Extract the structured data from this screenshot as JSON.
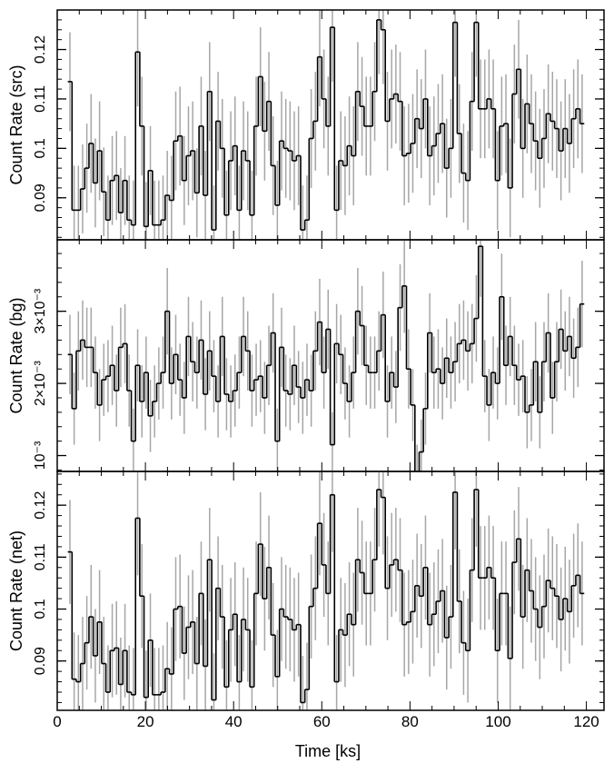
{
  "figure": {
    "xlabel": "Time [ks]",
    "x_tick_labels": [
      "0",
      "20",
      "40",
      "60",
      "80",
      "100",
      "120"
    ]
  },
  "colors": {
    "step_line": "#000000",
    "error_bar": "#a6a6a6",
    "axis": "#000000",
    "background": "#ffffff"
  },
  "chart_data": [
    {
      "type": "line",
      "style": "step-with-error-bars",
      "ylabel": "Count Rate (src)",
      "xlim": [
        0,
        124
      ],
      "ylim": [
        0.0815,
        0.128
      ],
      "y_ticks": [
        0.09,
        0.1,
        0.11,
        0.12
      ],
      "y_tick_labels": [
        "0.09",
        "0.1",
        "0.11",
        "0.12"
      ],
      "bin_width_ks": 0.96,
      "x_start_ks": 2.4,
      "grid": false,
      "values": [
        0.1135,
        0.0875,
        0.0875,
        0.0918,
        0.096,
        0.101,
        0.093,
        0.0995,
        0.0912,
        0.0855,
        0.0935,
        0.0945,
        0.087,
        0.0935,
        0.0855,
        0.0845,
        0.1195,
        0.1045,
        0.0842,
        0.0955,
        0.0845,
        0.0845,
        0.0855,
        0.0905,
        0.0895,
        0.1015,
        0.1025,
        0.0935,
        0.0985,
        0.0995,
        0.091,
        0.1045,
        0.0905,
        0.1115,
        0.0835,
        0.1055,
        0.1,
        0.0865,
        0.0975,
        0.1005,
        0.0875,
        0.0995,
        0.0975,
        0.0865,
        0.1045,
        0.1145,
        0.1035,
        0.1095,
        0.0965,
        0.0885,
        0.1015,
        0.1,
        0.0995,
        0.0975,
        0.0985,
        0.0835,
        0.0855,
        0.102,
        0.1055,
        0.1185,
        0.11,
        0.1045,
        0.1245,
        0.0875,
        0.0975,
        0.0965,
        0.1005,
        0.0985,
        0.1115,
        0.1085,
        0.1045,
        0.1045,
        0.1115,
        0.126,
        0.124,
        0.1055,
        0.11,
        0.111,
        0.1095,
        0.0985,
        0.099,
        0.101,
        0.106,
        0.104,
        0.11,
        0.0985,
        0.1005,
        0.103,
        0.105,
        0.096,
        0.1,
        0.1255,
        0.103,
        0.095,
        0.0935,
        0.1095,
        0.1255,
        0.108,
        0.108,
        0.11,
        0.108,
        0.0935,
        0.1045,
        0.105,
        0.092,
        0.111,
        0.116,
        0.1,
        0.109,
        0.105,
        0.1015,
        0.098,
        0.102,
        0.107,
        0.1055,
        0.104,
        0.0995,
        0.104,
        0.101,
        0.106,
        0.108,
        0.105
      ],
      "errors": [
        0.01,
        0.009,
        0.009,
        0.009,
        0.009,
        0.01,
        0.009,
        0.01,
        0.009,
        0.009,
        0.009,
        0.009,
        0.009,
        0.009,
        0.009,
        0.009,
        0.011,
        0.01,
        0.009,
        0.009,
        0.009,
        0.009,
        0.009,
        0.009,
        0.009,
        0.01,
        0.01,
        0.009,
        0.01,
        0.01,
        0.009,
        0.01,
        0.009,
        0.01,
        0.009,
        0.01,
        0.01,
        0.009,
        0.01,
        0.01,
        0.009,
        0.01,
        0.01,
        0.009,
        0.01,
        0.01,
        0.01,
        0.01,
        0.01,
        0.009,
        0.01,
        0.01,
        0.01,
        0.01,
        0.01,
        0.009,
        0.009,
        0.01,
        0.01,
        0.01,
        0.01,
        0.01,
        0.011,
        0.009,
        0.01,
        0.01,
        0.01,
        0.01,
        0.01,
        0.01,
        0.01,
        0.01,
        0.01,
        0.011,
        0.011,
        0.01,
        0.01,
        0.01,
        0.01,
        0.01,
        0.01,
        0.01,
        0.01,
        0.01,
        0.01,
        0.01,
        0.01,
        0.01,
        0.01,
        0.01,
        0.01,
        0.011,
        0.01,
        0.01,
        0.01,
        0.01,
        0.011,
        0.01,
        0.01,
        0.01,
        0.01,
        0.01,
        0.01,
        0.01,
        0.01,
        0.01,
        0.01,
        0.01,
        0.01,
        0.01,
        0.01,
        0.01,
        0.01,
        0.01,
        0.01,
        0.01,
        0.01,
        0.01,
        0.01,
        0.01,
        0.01,
        0.01
      ]
    },
    {
      "type": "line",
      "style": "step-with-error-bars",
      "ylabel": "Count Rate (bg)",
      "xlim": [
        0,
        124
      ],
      "ylim": [
        0.00078,
        0.00399
      ],
      "y_ticks": [
        0.001,
        0.002,
        0.003
      ],
      "y_tick_labels": [
        "10⁻³",
        "2×10⁻³",
        "3×10⁻³"
      ],
      "bin_width_ks": 0.96,
      "x_start_ks": 2.4,
      "grid": false,
      "values": [
        0.0024,
        0.00165,
        0.00245,
        0.0026,
        0.0025,
        0.0025,
        0.00215,
        0.0017,
        0.00205,
        0.0021,
        0.00225,
        0.0019,
        0.0025,
        0.00255,
        0.0019,
        0.0012,
        0.00225,
        0.00175,
        0.00215,
        0.00155,
        0.00175,
        0.002,
        0.00215,
        0.003,
        0.002,
        0.0024,
        0.00205,
        0.0018,
        0.00265,
        0.0023,
        0.00215,
        0.0026,
        0.00185,
        0.00245,
        0.0021,
        0.00175,
        0.00265,
        0.00185,
        0.00175,
        0.0019,
        0.00215,
        0.00265,
        0.00245,
        0.0019,
        0.00205,
        0.0021,
        0.0018,
        0.00225,
        0.0027,
        0.0012,
        0.0025,
        0.0019,
        0.00185,
        0.00225,
        0.00195,
        0.0018,
        0.00205,
        0.0019,
        0.00245,
        0.00285,
        0.00215,
        0.00275,
        0.00115,
        0.00255,
        0.0024,
        0.002,
        0.00175,
        0.00215,
        0.003,
        0.0028,
        0.00225,
        0.00215,
        0.00215,
        0.00245,
        0.00295,
        0.00175,
        0.00215,
        0.00195,
        0.00305,
        0.00335,
        0.0022,
        0.0017,
        0.00075,
        0.00105,
        0.00165,
        0.0027,
        0.00215,
        0.0022,
        0.002,
        0.00235,
        0.00215,
        0.0023,
        0.00255,
        0.0026,
        0.00245,
        0.00255,
        0.0029,
        0.0039,
        0.0021,
        0.0017,
        0.00215,
        0.002,
        0.0032,
        0.00225,
        0.00265,
        0.00225,
        0.00205,
        0.0021,
        0.0016,
        0.0017,
        0.0023,
        0.0016,
        0.0023,
        0.0027,
        0.0018,
        0.0023,
        0.00275,
        0.00245,
        0.00265,
        0.00235,
        0.0025,
        0.0031
      ],
      "errors": [
        0.00055,
        0.0005,
        0.00055,
        0.00055,
        0.00055,
        0.00055,
        0.0005,
        0.0005,
        0.0005,
        0.0005,
        0.00055,
        0.0005,
        0.00055,
        0.00055,
        0.0005,
        0.00045,
        0.0005,
        0.0005,
        0.0005,
        0.0005,
        0.0005,
        0.0005,
        0.0005,
        0.0006,
        0.0005,
        0.00055,
        0.0005,
        0.0005,
        0.00055,
        0.00055,
        0.0005,
        0.00055,
        0.0005,
        0.00055,
        0.0005,
        0.0005,
        0.00055,
        0.0005,
        0.0005,
        0.0005,
        0.0005,
        0.00055,
        0.00055,
        0.0005,
        0.0005,
        0.0005,
        0.0005,
        0.00055,
        0.00055,
        0.00045,
        0.00055,
        0.0005,
        0.0005,
        0.00055,
        0.0005,
        0.0005,
        0.0005,
        0.0005,
        0.00055,
        0.0006,
        0.0005,
        0.00055,
        0.00045,
        0.00055,
        0.00055,
        0.0005,
        0.0005,
        0.0005,
        0.0006,
        0.00055,
        0.00055,
        0.0005,
        0.0005,
        0.00055,
        0.0006,
        0.0005,
        0.0005,
        0.0005,
        0.0006,
        0.00065,
        0.00055,
        0.0005,
        0.0004,
        0.00045,
        0.0005,
        0.00055,
        0.0005,
        0.00055,
        0.0005,
        0.00055,
        0.0005,
        0.00055,
        0.00055,
        0.00055,
        0.00055,
        0.00055,
        0.0006,
        0.0007,
        0.0005,
        0.0005,
        0.0005,
        0.0005,
        0.0006,
        0.00055,
        0.00055,
        0.00055,
        0.0005,
        0.0005,
        0.0005,
        0.0005,
        0.00055,
        0.0005,
        0.00055,
        0.00055,
        0.0005,
        0.00055,
        0.00055,
        0.00055,
        0.00055,
        0.00055,
        0.00055,
        0.0006
      ]
    },
    {
      "type": "line",
      "style": "step-with-error-bars",
      "ylabel": "Count Rate (net)",
      "xlim": [
        0,
        124
      ],
      "ylim": [
        0.0805,
        0.1265
      ],
      "y_ticks": [
        0.09,
        0.1,
        0.11,
        0.12
      ],
      "y_tick_labels": [
        "0.09",
        "0.1",
        "0.11",
        "0.12"
      ],
      "bin_width_ks": 0.96,
      "x_start_ks": 2.4,
      "grid": false,
      "values": [
        0.111,
        0.0865,
        0.086,
        0.0895,
        0.0935,
        0.0985,
        0.091,
        0.0975,
        0.0895,
        0.084,
        0.092,
        0.0925,
        0.0855,
        0.092,
        0.084,
        0.0835,
        0.1175,
        0.1025,
        0.083,
        0.094,
        0.0835,
        0.0835,
        0.084,
        0.0885,
        0.0875,
        0.1,
        0.1005,
        0.0915,
        0.0965,
        0.0975,
        0.0895,
        0.103,
        0.089,
        0.1095,
        0.0825,
        0.104,
        0.0985,
        0.085,
        0.096,
        0.099,
        0.086,
        0.098,
        0.096,
        0.085,
        0.103,
        0.1125,
        0.102,
        0.108,
        0.095,
        0.087,
        0.1,
        0.0985,
        0.098,
        0.096,
        0.097,
        0.082,
        0.0845,
        0.1005,
        0.104,
        0.1165,
        0.1085,
        0.103,
        0.122,
        0.086,
        0.096,
        0.095,
        0.099,
        0.097,
        0.1095,
        0.107,
        0.103,
        0.103,
        0.1095,
        0.123,
        0.1215,
        0.104,
        0.1085,
        0.1095,
        0.1075,
        0.097,
        0.0975,
        0.0995,
        0.1045,
        0.1025,
        0.108,
        0.097,
        0.099,
        0.1015,
        0.1035,
        0.0945,
        0.0985,
        0.1225,
        0.1015,
        0.0935,
        0.092,
        0.1075,
        0.123,
        0.106,
        0.106,
        0.108,
        0.106,
        0.092,
        0.103,
        0.103,
        0.0905,
        0.109,
        0.1135,
        0.0985,
        0.1075,
        0.1035,
        0.1,
        0.0965,
        0.1005,
        0.1055,
        0.104,
        0.1025,
        0.098,
        0.102,
        0.0995,
        0.1045,
        0.1065,
        0.103
      ],
      "errors": [
        0.01,
        0.009,
        0.009,
        0.009,
        0.009,
        0.01,
        0.009,
        0.01,
        0.009,
        0.009,
        0.009,
        0.009,
        0.009,
        0.009,
        0.009,
        0.009,
        0.011,
        0.01,
        0.009,
        0.009,
        0.009,
        0.009,
        0.009,
        0.009,
        0.009,
        0.01,
        0.01,
        0.009,
        0.01,
        0.01,
        0.009,
        0.01,
        0.009,
        0.01,
        0.009,
        0.01,
        0.01,
        0.009,
        0.01,
        0.01,
        0.009,
        0.01,
        0.01,
        0.009,
        0.01,
        0.01,
        0.01,
        0.01,
        0.01,
        0.009,
        0.01,
        0.01,
        0.01,
        0.01,
        0.01,
        0.009,
        0.009,
        0.01,
        0.01,
        0.01,
        0.01,
        0.01,
        0.011,
        0.009,
        0.01,
        0.01,
        0.01,
        0.01,
        0.01,
        0.01,
        0.01,
        0.01,
        0.01,
        0.011,
        0.011,
        0.01,
        0.01,
        0.01,
        0.01,
        0.01,
        0.01,
        0.01,
        0.01,
        0.01,
        0.01,
        0.01,
        0.01,
        0.01,
        0.01,
        0.01,
        0.01,
        0.011,
        0.01,
        0.01,
        0.01,
        0.01,
        0.011,
        0.01,
        0.01,
        0.01,
        0.01,
        0.01,
        0.01,
        0.01,
        0.01,
        0.01,
        0.01,
        0.01,
        0.01,
        0.01,
        0.01,
        0.01,
        0.01,
        0.01,
        0.01,
        0.01,
        0.01,
        0.01,
        0.01,
        0.01,
        0.01,
        0.01
      ]
    }
  ]
}
